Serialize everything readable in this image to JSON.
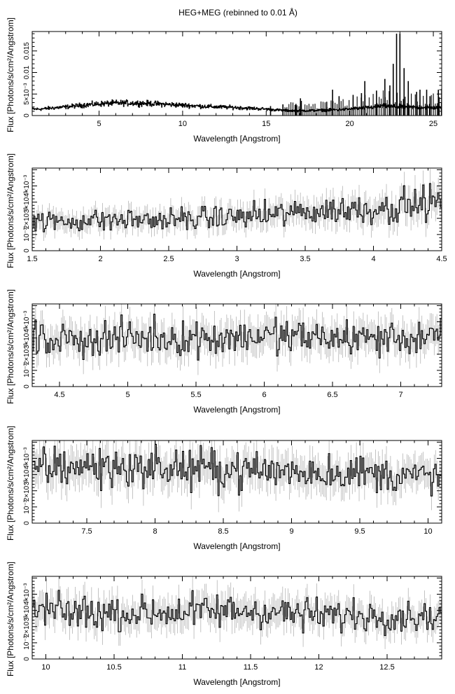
{
  "title": "HEG+MEG (rebinned to 0.01 Å)",
  "colors": {
    "axis": "#000000",
    "data": "#000000",
    "error": "#aaaaaa",
    "background": "#ffffff"
  },
  "chart_data": [
    {
      "type": "line",
      "panel": 1,
      "xlabel": "Wavelength [Angstrom]",
      "ylabel": "Flux [Photons/s/cm²/Angstrom]",
      "xlim": [
        1.0,
        25.5
      ],
      "ylim": [
        0,
        0.0195
      ],
      "xticks": [
        5,
        10,
        15,
        20,
        25
      ],
      "yticks": [
        {
          "v": 0,
          "label": "0"
        },
        {
          "v": 0.005,
          "label": "5×10⁻³"
        },
        {
          "v": 0.01,
          "label": "0.01"
        },
        {
          "v": 0.015,
          "label": "0.015"
        }
      ],
      "series": [
        {
          "x": [
            1.5,
            2,
            3,
            4,
            5,
            6,
            7,
            8,
            9,
            10,
            11,
            12,
            13,
            14,
            15,
            16,
            17,
            18,
            19,
            20,
            21,
            22,
            23,
            24,
            25.5
          ],
          "y": [
            0.0015,
            0.0017,
            0.002,
            0.0024,
            0.0027,
            0.0029,
            0.0029,
            0.0028,
            0.0026,
            0.0024,
            0.0022,
            0.002,
            0.0019,
            0.0017,
            0.0015,
            0.0012,
            0.0011,
            0.0012,
            0.0013,
            0.0015,
            0.0018,
            0.0022,
            0.002,
            0.0019,
            0.0018
          ]
        }
      ],
      "lines": [
        {
          "x": 15.26,
          "y": 0.0022
        },
        {
          "x": 16.0,
          "y": 0.0026
        },
        {
          "x": 16.78,
          "y": 0.0027
        },
        {
          "x": 17.05,
          "y": 0.004
        },
        {
          "x": 17.1,
          "y": 0.0034
        },
        {
          "x": 18.62,
          "y": 0.0032
        },
        {
          "x": 18.97,
          "y": 0.006
        },
        {
          "x": 19.36,
          "y": 0.0045
        },
        {
          "x": 20.2,
          "y": 0.0048
        },
        {
          "x": 20.7,
          "y": 0.0052
        },
        {
          "x": 20.9,
          "y": 0.008
        },
        {
          "x": 21.6,
          "y": 0.0058
        },
        {
          "x": 22.1,
          "y": 0.0085
        },
        {
          "x": 22.4,
          "y": 0.007
        },
        {
          "x": 22.6,
          "y": 0.012
        },
        {
          "x": 22.8,
          "y": 0.019
        },
        {
          "x": 23.0,
          "y": 0.019
        },
        {
          "x": 23.25,
          "y": 0.011
        },
        {
          "x": 23.5,
          "y": 0.008
        },
        {
          "x": 24.0,
          "y": 0.0055
        },
        {
          "x": 24.2,
          "y": 0.006
        },
        {
          "x": 24.6,
          "y": 0.006
        },
        {
          "x": 24.8,
          "y": 0.0045
        },
        {
          "x": 25.3,
          "y": 0.006
        },
        {
          "x": 25.5,
          "y": 0.0062
        }
      ]
    },
    {
      "type": "line",
      "panel": 2,
      "xlabel": "Wavelength [Angstrom]",
      "ylabel": "Flux [Photons/s/cm²/Angstrom]",
      "xlim": [
        1.5,
        4.5
      ],
      "ylim": [
        0,
        0.0051
      ],
      "xticks": [
        1.5,
        2,
        2.5,
        3,
        3.5,
        4,
        4.5
      ],
      "yticks": [
        {
          "v": 0,
          "label": "0"
        },
        {
          "v": 0.001,
          "label": "10⁻³"
        },
        {
          "v": 0.002,
          "label": "2×10⁻³"
        },
        {
          "v": 0.003,
          "label": "3×10⁻³"
        },
        {
          "v": 0.004,
          "label": "4×10⁻³"
        }
      ],
      "series": [
        {
          "x": [
            1.5,
            1.75,
            2.0,
            2.25,
            2.5,
            2.75,
            3.0,
            3.25,
            3.5,
            3.75,
            4.0,
            4.25,
            4.5
          ],
          "y": [
            0.0018,
            0.0018,
            0.0019,
            0.0019,
            0.0019,
            0.002,
            0.0021,
            0.0022,
            0.0024,
            0.0025,
            0.0026,
            0.0028,
            0.003
          ]
        }
      ]
    },
    {
      "type": "line",
      "panel": 3,
      "xlabel": "Wavelength [Angstrom]",
      "ylabel": "Flux [Photons/s/cm²/Angstrom]",
      "xlim": [
        4.3,
        7.3
      ],
      "ylim": [
        0,
        0.0051
      ],
      "xticks": [
        4.5,
        5,
        5.5,
        6,
        6.5,
        7
      ],
      "yticks": [
        {
          "v": 0,
          "label": "0"
        },
        {
          "v": 0.001,
          "label": "10⁻³"
        },
        {
          "v": 0.002,
          "label": "2×10⁻³"
        },
        {
          "v": 0.003,
          "label": "3×10⁻³"
        },
        {
          "v": 0.004,
          "label": "4×10⁻³"
        }
      ],
      "series": [
        {
          "x": [
            4.3,
            4.6,
            5.0,
            5.5,
            6.0,
            6.5,
            7.0,
            7.3
          ],
          "y": [
            0.0029,
            0.0029,
            0.003,
            0.003,
            0.0031,
            0.003,
            0.003,
            0.003
          ]
        }
      ]
    },
    {
      "type": "line",
      "panel": 4,
      "xlabel": "Wavelength [Angstrom]",
      "ylabel": "Flux [Photons/s/cm²/Angstrom]",
      "xlim": [
        7.1,
        10.1
      ],
      "ylim": [
        0,
        0.0051
      ],
      "xticks": [
        7.5,
        8,
        8.5,
        9,
        9.5,
        10
      ],
      "yticks": [
        {
          "v": 0,
          "label": "0"
        },
        {
          "v": 0.001,
          "label": "10⁻³"
        },
        {
          "v": 0.002,
          "label": "2×10⁻³"
        },
        {
          "v": 0.003,
          "label": "3×10⁻³"
        },
        {
          "v": 0.004,
          "label": "4×10⁻³"
        }
      ],
      "series": [
        {
          "x": [
            7.1,
            7.5,
            8.0,
            8.5,
            9.0,
            9.5,
            10.1
          ],
          "y": [
            0.0035,
            0.0035,
            0.0034,
            0.0033,
            0.0032,
            0.0031,
            0.0028
          ]
        }
      ]
    },
    {
      "type": "line",
      "panel": 5,
      "xlabel": "Wavelength [Angstrom]",
      "ylabel": "Flux [Photons/s/cm²/Angstrom]",
      "xlim": [
        9.9,
        12.9
      ],
      "ylim": [
        0,
        0.0051
      ],
      "xticks": [
        10,
        10.5,
        11,
        11.5,
        12,
        12.5
      ],
      "yticks": [
        {
          "v": 0,
          "label": "0"
        },
        {
          "v": 0.001,
          "label": "10⁻³"
        },
        {
          "v": 0.002,
          "label": "2×10⁻³"
        },
        {
          "v": 0.003,
          "label": "3×10⁻³"
        },
        {
          "v": 0.004,
          "label": "4×10⁻³"
        }
      ],
      "series": [
        {
          "x": [
            9.9,
            10.5,
            11.0,
            11.5,
            12.0,
            12.5,
            12.9
          ],
          "y": [
            0.003,
            0.0028,
            0.0029,
            0.003,
            0.0027,
            0.0027,
            0.0026
          ]
        }
      ]
    }
  ]
}
